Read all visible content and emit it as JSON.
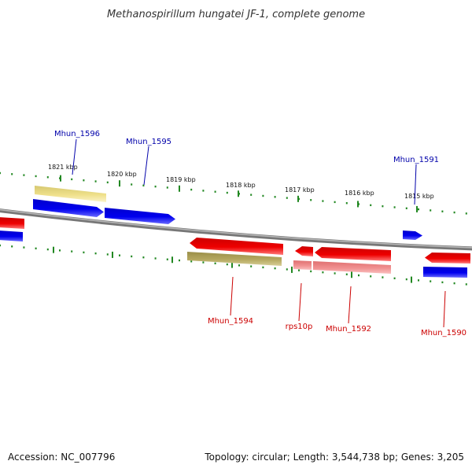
{
  "title": "Methanospirillum hungatei JF-1, complete genome",
  "footer": {
    "accession": "Accession: NC_007796",
    "stats": "Topology: circular; Length: 3,544,738 bp; Genes: 3,205"
  },
  "colors": {
    "forward": "#0000ee",
    "reverse": "#ee0000",
    "forward_pale": "#efe08a",
    "reverse_pale": "#b5a860",
    "rna_pale": "#f09090",
    "backbone": "#888888",
    "ticks": "#228822",
    "fwd_label": "#0000aa",
    "rev_label": "#cc0000"
  },
  "scale_labels": [
    "1821 kbp",
    "1820 kbp",
    "1819 kbp",
    "1818 kbp",
    "1817 kbp",
    "1816 kbp",
    "1815 kbp"
  ],
  "gene_labels": [
    {
      "key": "mhun1596",
      "text": "Mhun_1596",
      "strand": "forward"
    },
    {
      "key": "mhun1595",
      "text": "Mhun_1595",
      "strand": "forward"
    },
    {
      "key": "mhun1591",
      "text": "Mhun_1591",
      "strand": "forward"
    },
    {
      "key": "mhun1594",
      "text": "Mhun_1594",
      "strand": "reverse"
    },
    {
      "key": "rps10p",
      "text": "rps10p",
      "strand": "reverse"
    },
    {
      "key": "mhun1592",
      "text": "Mhun_1592",
      "strand": "reverse"
    },
    {
      "key": "mhun1590",
      "text": "Mhun_1590",
      "strand": "reverse"
    }
  ]
}
